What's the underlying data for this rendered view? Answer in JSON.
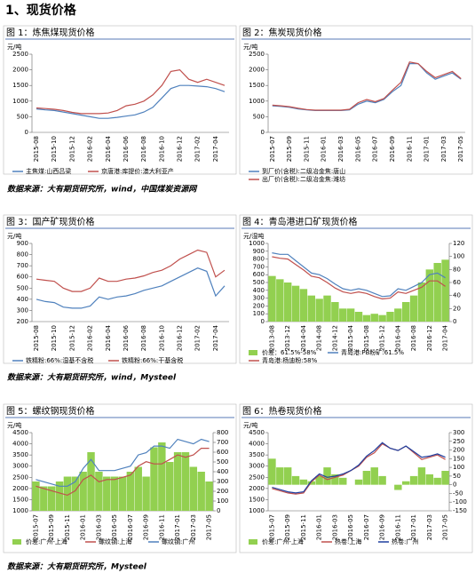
{
  "heading": "1、现货价格",
  "sources": [
    "数据来源：大有期货研究所，wind，中国煤炭资源网",
    "数据来源：大有期货研究所，wind，Mysteel",
    "数据来源：大有期货研究所，Mysteel"
  ],
  "chart_data": [
    {
      "type": "line",
      "title": "图 1：炼焦煤现货价格",
      "y_label": "元/吨",
      "categories": [
        "2015-08",
        null,
        "2015-10",
        null,
        "2015-12",
        null,
        "2016-02",
        null,
        "2016-04",
        null,
        "2016-06",
        null,
        "2016-08",
        null,
        "2016-10",
        null,
        "2016-12",
        null,
        "2017-02",
        null,
        "2017-04",
        null
      ],
      "ylim": [
        0,
        2500
      ],
      "yticks": [
        0,
        500,
        1000,
        1500,
        2000,
        2500
      ],
      "series": [
        {
          "name": "主焦煤:山西吕梁",
          "color": "#4f81bd",
          "values": [
            750,
            720,
            700,
            650,
            600,
            550,
            500,
            450,
            450,
            480,
            520,
            560,
            650,
            800,
            1100,
            1400,
            1500,
            1500,
            1480,
            1460,
            1400,
            1300
          ]
        },
        {
          "name": "京唐港:库提价:澳大利亚产",
          "color": "#c0504d",
          "values": [
            780,
            760,
            740,
            700,
            640,
            600,
            600,
            600,
            620,
            700,
            850,
            900,
            1000,
            1200,
            1500,
            1950,
            2000,
            1700,
            1600,
            1700,
            1600,
            1500
          ]
        }
      ]
    },
    {
      "type": "line",
      "title": "图 2：焦炭现货价格",
      "y_label": "元/吨",
      "categories": [
        "2015-07",
        null,
        "2015-09",
        null,
        "2015-11",
        null,
        "2016-01",
        null,
        "2016-03",
        null,
        "2016-05",
        null,
        "2016-07",
        null,
        "2016-09",
        null,
        "2016-11",
        null,
        "2017-01",
        null,
        "2017-03",
        null,
        "2017-05"
      ],
      "ylim": [
        0,
        2500
      ],
      "yticks": [
        0,
        500,
        1000,
        1500,
        2000,
        2500
      ],
      "series": [
        {
          "name": "到厂价(含税):二级冶金焦:唐山",
          "color": "#4f81bd",
          "values": [
            850,
            830,
            800,
            750,
            720,
            700,
            700,
            700,
            700,
            720,
            900,
            1000,
            950,
            1050,
            1300,
            1500,
            2200,
            2200,
            1900,
            1700,
            1800,
            1900,
            1700
          ]
        },
        {
          "name": "出厂价(含税):二级冶金焦:潍坊",
          "color": "#c0504d",
          "values": [
            870,
            850,
            820,
            770,
            730,
            710,
            710,
            710,
            710,
            740,
            950,
            1050,
            980,
            1080,
            1350,
            1600,
            2250,
            2200,
            1950,
            1750,
            1850,
            1950,
            1720
          ]
        }
      ]
    },
    {
      "type": "line",
      "title": "图 3：国产矿现货价格",
      "y_label": "元/吨",
      "categories": [
        "2015-08",
        null,
        "2015-10",
        null,
        "2015-12",
        null,
        "2016-02",
        null,
        "2016-04",
        null,
        "2016-06",
        null,
        "2016-08",
        null,
        "2016-10",
        null,
        "2016-12",
        null,
        "2017-02",
        null,
        "2017-04",
        null
      ],
      "ylim": [
        200,
        900
      ],
      "yticks": [
        200,
        300,
        400,
        500,
        600,
        700,
        800,
        900
      ],
      "series": [
        {
          "name": "铁精粉:66%:湿基不含税",
          "color": "#4f81bd",
          "values": [
            400,
            380,
            370,
            330,
            320,
            320,
            340,
            420,
            400,
            420,
            430,
            450,
            480,
            500,
            520,
            560,
            600,
            640,
            680,
            650,
            430,
            520
          ]
        },
        {
          "name": "铁精粉:66%:干基含税",
          "color": "#c0504d",
          "values": [
            580,
            570,
            560,
            500,
            470,
            470,
            500,
            590,
            560,
            560,
            580,
            590,
            610,
            640,
            660,
            700,
            760,
            800,
            840,
            820,
            600,
            660
          ]
        }
      ]
    },
    {
      "type": "combo",
      "title": "图 4：青岛港进口矿现货价格",
      "y_label": "元/湿吨",
      "categories": [
        "2013-08",
        null,
        "2013-12",
        null,
        "2014-04",
        null,
        "2014-08",
        null,
        "2014-12",
        null,
        "2015-04",
        null,
        "2015-08",
        null,
        "2015-12",
        null,
        "2016-04",
        null,
        "2016-08",
        null,
        "2016-12",
        null,
        "2017-04"
      ],
      "ylim": [
        0,
        1000
      ],
      "yticks": [
        0,
        100,
        200,
        300,
        400,
        500,
        600,
        700,
        800,
        900,
        1000
      ],
      "y2lim": [
        0,
        120
      ],
      "y2ticks": [
        0,
        20,
        40,
        60,
        80,
        100,
        120
      ],
      "series": [
        {
          "name": "价差：61.5%-58%",
          "color": "#92d050",
          "type": "bar",
          "axis": "y2",
          "values": [
            70,
            65,
            60,
            55,
            50,
            40,
            35,
            40,
            30,
            20,
            20,
            15,
            10,
            12,
            10,
            15,
            20,
            30,
            40,
            60,
            80,
            90,
            95
          ]
        },
        {
          "name": "青岛港:PB粉矿:61.5%",
          "color": "#4f81bd",
          "values": [
            880,
            860,
            860,
            780,
            700,
            620,
            600,
            550,
            480,
            420,
            400,
            420,
            400,
            360,
            320,
            330,
            420,
            400,
            450,
            500,
            600,
            620,
            560
          ]
        },
        {
          "name": "青岛港:杨迪粉:58%",
          "color": "#c0504d",
          "values": [
            830,
            810,
            800,
            730,
            660,
            580,
            560,
            500,
            430,
            380,
            360,
            380,
            360,
            320,
            290,
            300,
            380,
            360,
            400,
            440,
            520,
            520,
            450
          ]
        }
      ]
    },
    {
      "type": "combo",
      "title": "图 5：螺纹钢现货价格",
      "y_label": "元/吨",
      "categories": [
        "2015-07",
        null,
        "2015-09",
        null,
        "2015-11",
        null,
        "2016-01",
        null,
        "2016-03",
        null,
        "2016-05",
        null,
        "2016-07",
        null,
        "2016-09",
        null,
        "2016-11",
        null,
        "2017-01",
        null,
        "2017-03",
        null,
        "2017-05"
      ],
      "ylim": [
        1000,
        4500
      ],
      "yticks": [
        1000,
        1500,
        2000,
        2500,
        3000,
        3500,
        4000,
        4500
      ],
      "y2lim": [
        0,
        800
      ],
      "y2ticks": [
        0,
        100,
        200,
        300,
        400,
        500,
        600,
        700,
        800
      ],
      "series": [
        {
          "name": "价差:广州-上海",
          "color": "#92d050",
          "type": "bar",
          "axis": "y2",
          "values": [
            300,
            250,
            250,
            300,
            350,
            350,
            400,
            600,
            400,
            350,
            350,
            350,
            400,
            450,
            350,
            650,
            700,
            500,
            600,
            600,
            450,
            400,
            300
          ]
        },
        {
          "name": "螺纹钢:上海",
          "color": "#c0504d",
          "values": [
            2100,
            2000,
            1900,
            1800,
            1700,
            1900,
            2400,
            2600,
            2300,
            2400,
            2400,
            2500,
            2600,
            3000,
            3200,
            3100,
            3100,
            3300,
            3500,
            3400,
            3500,
            3800,
            3800
          ]
        },
        {
          "name": "螺纹钢:广州",
          "color": "#4f81bd",
          "values": [
            2400,
            2300,
            2200,
            2100,
            2100,
            2300,
            2900,
            3300,
            2800,
            2800,
            2800,
            2900,
            3000,
            3500,
            3600,
            3900,
            3900,
            3800,
            4200,
            4100,
            4000,
            4200,
            4100
          ]
        }
      ]
    },
    {
      "type": "combo",
      "title": "图 6：热卷现货价格",
      "y_label": "元/吨",
      "categories": [
        "2015-07",
        null,
        "2015-09",
        null,
        "2015-11",
        null,
        "2016-01",
        null,
        "2016-03",
        null,
        "2016-05",
        null,
        "2016-07",
        null,
        "2016-09",
        null,
        "2016-11",
        null,
        "2017-01",
        null,
        "2017-03",
        null,
        "2017-05"
      ],
      "ylim": [
        1000,
        4500
      ],
      "yticks": [
        1000,
        1500,
        2000,
        2500,
        3000,
        3500,
        4000,
        4500
      ],
      "y2lim": [
        -150,
        300
      ],
      "y2ticks": [
        -150,
        -100,
        -50,
        0,
        50,
        100,
        150,
        200,
        250,
        300
      ],
      "series": [
        {
          "name": "价差:广州-上海",
          "color": "#92d050",
          "type": "bar",
          "axis": "y2",
          "values": [
            150,
            100,
            100,
            50,
            30,
            20,
            50,
            100,
            60,
            40,
            0,
            30,
            80,
            100,
            50,
            0,
            -30,
            20,
            50,
            100,
            60,
            40,
            80
          ]
        },
        {
          "name": "热卷:上海",
          "color": "#c0504d",
          "values": [
            2000,
            1900,
            1800,
            1750,
            1800,
            2300,
            2600,
            2400,
            2500,
            2600,
            2800,
            3000,
            3400,
            3600,
            4000,
            3800,
            3700,
            3900,
            3600,
            3300,
            3400,
            3500,
            3300
          ]
        },
        {
          "name": "热卷:广州",
          "color": "#1f3f9f",
          "values": [
            2050,
            1950,
            1850,
            1800,
            1850,
            2350,
            2650,
            2500,
            2550,
            2650,
            2800,
            3050,
            3450,
            3700,
            4050,
            3800,
            3700,
            3900,
            3650,
            3400,
            3450,
            3550,
            3400
          ]
        }
      ]
    }
  ]
}
